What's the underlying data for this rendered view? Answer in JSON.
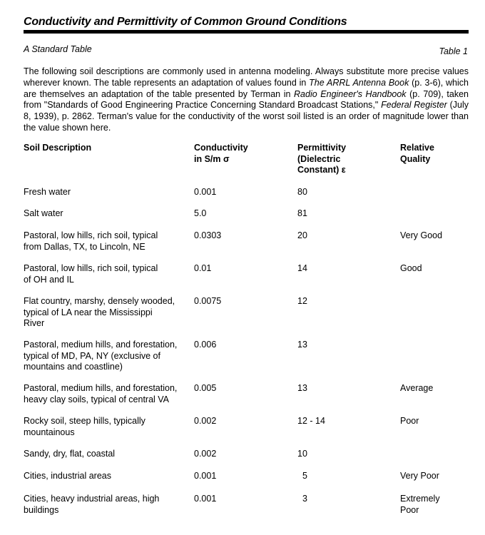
{
  "title": "Conductivity and Permittivity of Common Ground Conditions",
  "subtitle": "A Standard Table",
  "table_number": "Table 1",
  "intro": {
    "p1": "The following soil descriptions are commonly used in antenna modeling.  Always substitute more precise values wherever known.  The table represents an adaptation of values found in ",
    "book1": "The ARRL Antenna Book",
    "p2": " (p. 3-6), which are themselves an adaptation of the table presented by Terman in ",
    "book2": "Radio Engineer's Handbook",
    "p3": " (p. 709), taken from \"Standards of Good Engineering Practice Concerning Standard Broadcast Stations,\" ",
    "book3": "Federal Register",
    "p4": " (July 8, 1939), p. 2862.  Terman's value for the conductivity of the worst soil listed is an order of magnitude lower than the value shown here."
  },
  "headers": [
    "Soil Description",
    "Conductivity\nin S/m σ",
    "Permittivity\n(Dielectric\nConstant) ε",
    "Relative\nQuality"
  ],
  "rows": [
    [
      "Fresh water",
      "0.001",
      "80",
      ""
    ],
    [
      "Salt water",
      "5.0",
      "81",
      ""
    ],
    [
      "Pastoral, low hills, rich soil, typical\n from Dallas, TX, to Lincoln, NE",
      "0.0303",
      "20",
      "Very Good"
    ],
    [
      "Pastoral, low hills, rich soil, typical\n of OH and IL",
      "0.01",
      "14",
      "Good"
    ],
    [
      "Flat country, marshy, densely wooded,\n typical of LA near the Mississippi\n River",
      "0.0075",
      "12",
      ""
    ],
    [
      "Pastoral, medium hills, and forestation,\n typical of MD, PA, NY (exclusive of\n mountains and coastline)",
      "0.006",
      "13",
      ""
    ],
    [
      "Pastoral, medium hills, and forestation,\n heavy clay soils, typical of central VA",
      "0.005",
      "13",
      "Average"
    ],
    [
      "Rocky soil, steep hills, typically\n mountainous",
      "0.002",
      "12 - 14",
      "Poor"
    ],
    [
      "Sandy, dry, flat, coastal",
      "0.002",
      "10",
      ""
    ],
    [
      "Cities, industrial areas",
      "0.001",
      "  5",
      "Very Poor"
    ],
    [
      "Cities, heavy industrial areas, high\n buildings",
      "0.001",
      "  3",
      "Extremely\nPoor"
    ]
  ]
}
